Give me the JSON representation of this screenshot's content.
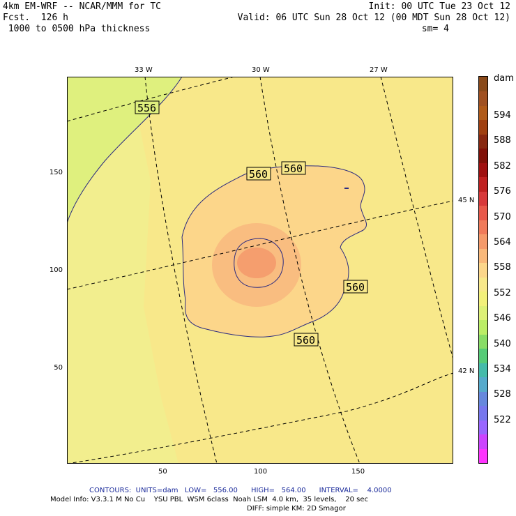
{
  "header": {
    "model": "4km EM-WRF -- NCAR/MMM for TC",
    "forecast": "Fcst.  126 h",
    "field": " 1000 to 0500 hPa thickness",
    "init": "Init: 00 UTC Tue 23 Oct 12",
    "valid": "Valid: 06 UTC Sun 28 Oct 12 (00 MDT Sun 28 Oct 12)",
    "smoothing": "sm= 4"
  },
  "map": {
    "top_lon_labels": [
      "33 W",
      "30 W",
      "27 W"
    ],
    "right_lat_labels": [
      "45 N",
      "42 N"
    ],
    "x_ticks": [
      "50",
      "100",
      "150"
    ],
    "y_ticks": [
      "150",
      "100",
      "50"
    ],
    "contour_labels": [
      "556",
      "560",
      "560",
      "560",
      "560"
    ]
  },
  "colorbar": {
    "unit": "dam",
    "labels": [
      "594",
      "588",
      "582",
      "576",
      "570",
      "564",
      "558",
      "552",
      "546",
      "540",
      "534",
      "528",
      "522"
    ],
    "colors": [
      "#ff33ff",
      "#cc44ff",
      "#9966ff",
      "#7777ee",
      "#6688dd",
      "#55aacc",
      "#44bbaa",
      "#55cc77",
      "#88dd66",
      "#bbee66",
      "#ddf077",
      "#f2f07a",
      "#f8e88a",
      "#fcd68a",
      "#f9b87a",
      "#f59a6a",
      "#f07a5a",
      "#e8584a",
      "#d8383a",
      "#c02020",
      "#a01010",
      "#801008",
      "#882810",
      "#a04010",
      "#b05a18",
      "#a05020",
      "#8a4a1a"
    ]
  },
  "footer": {
    "contours": "CONTOURS:  UNITS=dam   LOW=   556.00      HIGH=   564.00      INTERVAL=    4.0000",
    "model_info": "Model Info: V3.3.1 M No Cu    YSU PBL  WSM 6class  Noah LSM  4.0 km,  35 levels,    20 sec",
    "diff": "DIFF: simple KM: 2D Smagor"
  }
}
